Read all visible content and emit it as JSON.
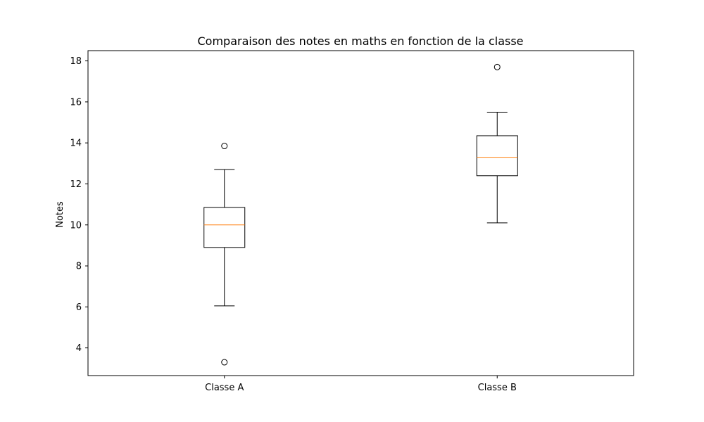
{
  "chart_data": {
    "type": "box",
    "title": "Comparaison des notes en maths en fonction de la classe",
    "xlabel": "",
    "ylabel": "Notes",
    "categories": [
      "Classe A",
      "Classe B"
    ],
    "ylim": [
      2.65,
      18.5
    ],
    "yticks": [
      4,
      6,
      8,
      10,
      12,
      14,
      16,
      18
    ],
    "grid": false,
    "boxes": [
      {
        "category": "Classe A",
        "whisker_low": 6.05,
        "q1": 8.9,
        "median": 10.0,
        "q3": 10.85,
        "whisker_high": 12.7,
        "outliers": [
          13.85,
          3.3
        ]
      },
      {
        "category": "Classe B",
        "whisker_low": 10.1,
        "q1": 12.4,
        "median": 13.3,
        "q3": 14.35,
        "whisker_high": 15.5,
        "outliers": [
          17.7
        ]
      }
    ],
    "colors": {
      "box": "#000000",
      "median": "#ff7f0e",
      "outlier": "#000000"
    }
  }
}
